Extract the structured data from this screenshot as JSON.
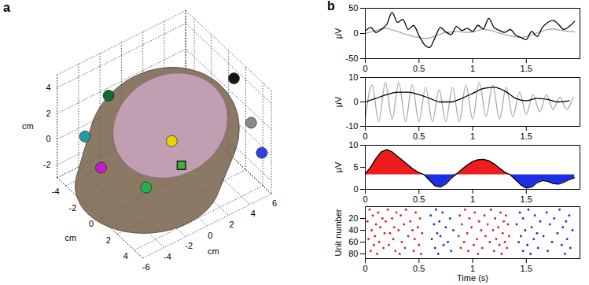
{
  "chart_data": [
    {
      "type": "scatter3d",
      "title": "a",
      "xlabel": "cm",
      "ylabel": "cm",
      "zlabel": "cm",
      "xlim": [
        -6,
        6
      ],
      "ylim": [
        -5,
        5
      ],
      "zlim": [
        -3,
        5
      ],
      "xticks": [
        -6,
        -4,
        -2,
        0,
        2,
        4,
        6
      ],
      "yticks": [
        -4,
        -2,
        0,
        2,
        4
      ],
      "zticks": [
        -2,
        0,
        2,
        4
      ],
      "grid": true,
      "series": [
        {
          "marker": "circle",
          "colors": [
            "#e6d400",
            "#c21ec8",
            "#1f9ea8",
            "#0e6b2e",
            "#22b24c",
            "#2f3fe0",
            "#151515",
            "#8a8a86"
          ],
          "values": [
            [
              -0.9,
              2,
              2.1
            ],
            [
              -5.1,
              -1,
              -0.1
            ],
            [
              -5.8,
              -2,
              2.0
            ],
            [
              -2.8,
              -3,
              3.3
            ],
            [
              -3.3,
              2,
              -0.5
            ],
            [
              5.9,
              4,
              -0.4
            ],
            [
              5.7,
              1,
              3.6
            ],
            [
              5.7,
              3,
              1.4
            ]
          ]
        },
        {
          "marker": "square",
          "color": "#3cb43c",
          "values": [
            [
              -0.8,
              3,
              0.8
            ]
          ]
        }
      ]
    },
    {
      "type": "line",
      "title": "b",
      "ylabel": "μV",
      "xlim": [
        0,
        2
      ],
      "xticks": [
        0,
        0.5,
        1,
        1.5
      ],
      "ylim": [
        -50,
        50
      ],
      "yticks": [
        -50,
        0,
        50
      ],
      "x": [
        0,
        0.05,
        0.1,
        0.15,
        0.2,
        0.25,
        0.3,
        0.35,
        0.4,
        0.45,
        0.5,
        0.55,
        0.6,
        0.65,
        0.7,
        0.75,
        0.8,
        0.85,
        0.9,
        0.95,
        1,
        1.05,
        1.1,
        1.15,
        1.2,
        1.25,
        1.3,
        1.35,
        1.4,
        1.45,
        1.5,
        1.55,
        1.6,
        1.65,
        1.7,
        1.75,
        1.8,
        1.85,
        1.9,
        1.95
      ],
      "series": [
        {
          "color": "#a8a8a8",
          "values": [
            0,
            3,
            6,
            9,
            10,
            7,
            4,
            0,
            -3,
            -6,
            -8,
            -10,
            -9,
            -5,
            -1,
            2,
            3,
            4,
            3,
            2,
            3,
            6,
            8,
            7,
            4,
            1,
            -2,
            -5,
            -7,
            -8,
            -6,
            -3,
            1,
            5,
            8,
            9,
            7,
            5,
            4,
            3
          ]
        },
        {
          "color": "#000000",
          "values": [
            5,
            12,
            2,
            8,
            18,
            42,
            22,
            28,
            8,
            16,
            -4,
            -22,
            -28,
            -8,
            12,
            3,
            -2,
            14,
            6,
            10,
            4,
            16,
            9,
            30,
            12,
            6,
            2,
            8,
            -3,
            -8,
            -12,
            4,
            -6,
            12,
            22,
            26,
            18,
            8,
            14,
            24
          ]
        }
      ]
    },
    {
      "type": "line",
      "ylabel": "μV",
      "xlim": [
        0,
        2
      ],
      "xticks": [
        0,
        0.5,
        1,
        1.5
      ],
      "ylim": [
        -10,
        10
      ],
      "yticks": [
        -10,
        0,
        10
      ],
      "series": [
        {
          "color": "#a8a8a8",
          "x": [
            0,
            0.0625,
            0.125,
            0.1875,
            0.25,
            0.3125,
            0.375,
            0.4375,
            0.5,
            0.5625,
            0.625,
            0.6875,
            0.75,
            0.8125,
            0.875,
            0.9375,
            1,
            1.0625,
            1.125,
            1.1875,
            1.25,
            1.3125,
            1.375,
            1.4375,
            1.5,
            1.5625,
            1.625,
            1.6875,
            1.75,
            1.8125,
            1.875,
            1.9375
          ],
          "values": [
            -7,
            7,
            -8,
            8,
            -7,
            8,
            -8,
            7,
            -8,
            6,
            -8,
            5,
            -8,
            6,
            -8,
            7,
            -7,
            8,
            -6,
            7,
            -7,
            6,
            -6,
            4,
            -5,
            3,
            -4,
            3,
            -3,
            2,
            -3,
            2
          ]
        },
        {
          "color": "#000000",
          "x": [
            0,
            0.1,
            0.2,
            0.3,
            0.4,
            0.5,
            0.6,
            0.7,
            0.8,
            0.9,
            1,
            1.1,
            1.2,
            1.3,
            1.4,
            1.5,
            1.6,
            1.7,
            1.8,
            1.9
          ],
          "values": [
            0,
            1.5,
            3,
            4,
            4,
            3,
            1.5,
            0,
            0,
            1.5,
            3.5,
            5.5,
            6,
            4.5,
            1.5,
            0.5,
            1.5,
            1,
            0,
            0.5
          ]
        }
      ]
    },
    {
      "type": "area",
      "ylabel": "μV",
      "xlim": [
        0,
        2
      ],
      "xticks": [
        0,
        0.5,
        1,
        1.5
      ],
      "ylim": [
        0,
        10
      ],
      "yticks": [
        0,
        5,
        10
      ],
      "threshold": 3.3,
      "color": "#000000",
      "colors": [
        "#ee1c1c",
        "#1c2ee6"
      ],
      "x": [
        0,
        0.05,
        0.1,
        0.15,
        0.2,
        0.25,
        0.3,
        0.35,
        0.4,
        0.45,
        0.5,
        0.55,
        0.6,
        0.65,
        0.7,
        0.75,
        0.8,
        0.85,
        0.9,
        0.95,
        1,
        1.05,
        1.1,
        1.15,
        1.2,
        1.25,
        1.3,
        1.35,
        1.4,
        1.45,
        1.5,
        1.55,
        1.6,
        1.65,
        1.7,
        1.75,
        1.8,
        1.85,
        1.9,
        1.95
      ],
      "values": [
        3.5,
        5,
        7,
        8.5,
        9,
        8.5,
        7.5,
        6.5,
        5.5,
        4.5,
        3.8,
        3.3,
        2,
        0.8,
        0.5,
        1.2,
        2.5,
        3.5,
        4.5,
        5.5,
        6.3,
        6.7,
        6.8,
        6.5,
        5.8,
        4.8,
        3.9,
        3.3,
        2.2,
        1,
        0.3,
        0.5,
        1.5,
        2,
        1.8,
        1.3,
        1.2,
        1.6,
        2.2,
        2.6
      ]
    },
    {
      "type": "scatter",
      "xlabel": "Time (s)",
      "ylabel": "Unit number",
      "marker": "dot",
      "xlim": [
        0,
        2
      ],
      "xticks": [
        0,
        0.5,
        1,
        1.5
      ],
      "ylim": [
        88,
        0
      ],
      "yticks": [
        20,
        40,
        60,
        80
      ],
      "series": [
        {
          "color": "#e41a1a",
          "values": [
            [
              0.04,
              5
            ],
            [
              0.21,
              5
            ],
            [
              0.38,
              5
            ],
            [
              0.93,
              5
            ],
            [
              1.17,
              5
            ],
            [
              0.12,
              10
            ],
            [
              0.29,
              10
            ],
            [
              0.47,
              10
            ],
            [
              1.02,
              10
            ],
            [
              1.26,
              10
            ],
            [
              0.07,
              15
            ],
            [
              0.33,
              15
            ],
            [
              0.88,
              15
            ],
            [
              1.11,
              15
            ],
            [
              1.31,
              15
            ],
            [
              0.16,
              20
            ],
            [
              0.25,
              20
            ],
            [
              0.51,
              20
            ],
            [
              0.97,
              20
            ],
            [
              1.21,
              20
            ],
            [
              0.02,
              25
            ],
            [
              0.19,
              25
            ],
            [
              0.42,
              25
            ],
            [
              1.06,
              25
            ],
            [
              1.29,
              25
            ],
            [
              0.1,
              30
            ],
            [
              0.36,
              30
            ],
            [
              0.9,
              30
            ],
            [
              1.14,
              30
            ],
            [
              1.33,
              30
            ],
            [
              0.14,
              35
            ],
            [
              0.27,
              35
            ],
            [
              0.49,
              35
            ],
            [
              0.99,
              35
            ],
            [
              1.24,
              35
            ],
            [
              0.06,
              40
            ],
            [
              0.31,
              40
            ],
            [
              0.44,
              40
            ],
            [
              1.08,
              40
            ],
            [
              1.19,
              40
            ],
            [
              0.18,
              45
            ],
            [
              0.23,
              45
            ],
            [
              0.53,
              45
            ],
            [
              0.95,
              45
            ],
            [
              1.28,
              45
            ],
            [
              0.09,
              50
            ],
            [
              0.4,
              50
            ],
            [
              0.87,
              50
            ],
            [
              1.12,
              50
            ],
            [
              1.34,
              50
            ],
            [
              0.03,
              55
            ],
            [
              0.26,
              55
            ],
            [
              0.46,
              55
            ],
            [
              1.04,
              55
            ],
            [
              1.22,
              55
            ],
            [
              0.13,
              60
            ],
            [
              0.34,
              60
            ],
            [
              0.92,
              60
            ],
            [
              1.16,
              60
            ],
            [
              1.3,
              60
            ],
            [
              0.08,
              65
            ],
            [
              0.22,
              65
            ],
            [
              0.5,
              65
            ],
            [
              1.01,
              65
            ],
            [
              1.25,
              65
            ],
            [
              0.17,
              70
            ],
            [
              0.37,
              70
            ],
            [
              0.89,
              70
            ],
            [
              1.09,
              70
            ],
            [
              1.32,
              70
            ],
            [
              0.05,
              75
            ],
            [
              0.28,
              75
            ],
            [
              0.45,
              75
            ],
            [
              0.96,
              75
            ],
            [
              1.2,
              75
            ],
            [
              0.11,
              80
            ],
            [
              0.32,
              80
            ],
            [
              0.52,
              80
            ],
            [
              1.05,
              80
            ],
            [
              1.27,
              80
            ]
          ]
        },
        {
          "color": "#1a2ee4",
          "values": [
            [
              0.66,
              5
            ],
            [
              1.52,
              5
            ],
            [
              1.81,
              5
            ],
            [
              0.72,
              10
            ],
            [
              1.44,
              10
            ],
            [
              1.69,
              10
            ],
            [
              0.61,
              15
            ],
            [
              1.58,
              15
            ],
            [
              1.9,
              15
            ],
            [
              0.79,
              20
            ],
            [
              1.47,
              20
            ],
            [
              1.76,
              20
            ],
            [
              0.69,
              25
            ],
            [
              1.63,
              25
            ],
            [
              1.87,
              25
            ],
            [
              0.64,
              30
            ],
            [
              1.41,
              30
            ],
            [
              1.72,
              30
            ],
            [
              0.75,
              35
            ],
            [
              1.55,
              35
            ],
            [
              1.84,
              35
            ],
            [
              0.82,
              40
            ],
            [
              1.49,
              40
            ],
            [
              1.93,
              40
            ],
            [
              0.67,
              45
            ],
            [
              1.6,
              45
            ],
            [
              1.79,
              45
            ],
            [
              0.7,
              50
            ],
            [
              1.45,
              50
            ],
            [
              1.66,
              50
            ],
            [
              0.62,
              55
            ],
            [
              1.57,
              55
            ],
            [
              1.88,
              55
            ],
            [
              0.77,
              60
            ],
            [
              1.43,
              60
            ],
            [
              1.74,
              60
            ],
            [
              0.73,
              65
            ],
            [
              1.51,
              65
            ],
            [
              1.83,
              65
            ],
            [
              0.65,
              70
            ],
            [
              1.61,
              70
            ],
            [
              1.91,
              70
            ],
            [
              0.8,
              75
            ],
            [
              1.47,
              75
            ],
            [
              1.7,
              75
            ],
            [
              0.68,
              80
            ],
            [
              1.54,
              80
            ],
            [
              1.86,
              80
            ]
          ]
        }
      ]
    }
  ]
}
